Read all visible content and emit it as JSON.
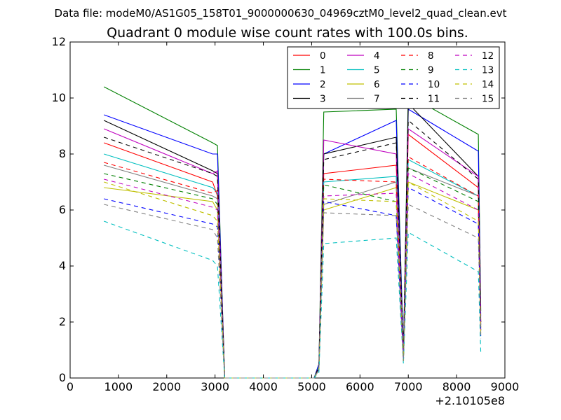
{
  "suptitle": "Data file: modeM0/AS1G05_158T01_9000000630_04969cztM0_level2_quad_clean.evt",
  "chart_data": {
    "type": "line",
    "title": "Quadrant 0 module wise count rates with 100.0s bins.",
    "xlabel": "",
    "ylabel": "",
    "x_offset_label": "+2.10105e8",
    "xlim": [
      0,
      9000
    ],
    "ylim": [
      0,
      12
    ],
    "xticks": [
      0,
      1000,
      2000,
      3000,
      4000,
      5000,
      6000,
      7000,
      8000,
      9000
    ],
    "yticks": [
      0,
      2,
      4,
      6,
      8,
      10,
      12
    ],
    "grid": false,
    "legend": {
      "placement": "top-right",
      "columns": 4
    },
    "x": [
      700,
      2950,
      3050,
      3200,
      5050,
      5150,
      5250,
      6750,
      6900,
      7000,
      8450,
      8500
    ],
    "series": [
      {
        "name": "0",
        "color": "#ff0000",
        "dash": "solid",
        "values": [
          8.4,
          7.0,
          6.5,
          0.0,
          0.0,
          0.4,
          7.3,
          7.6,
          0.9,
          8.7,
          6.8,
          2.0
        ]
      },
      {
        "name": "1",
        "color": "#008000",
        "dash": "solid",
        "values": [
          10.4,
          8.4,
          8.3,
          0.0,
          0.0,
          0.5,
          9.5,
          9.6,
          1.0,
          10.1,
          8.7,
          2.4
        ]
      },
      {
        "name": "2",
        "color": "#0000ff",
        "dash": "solid",
        "values": [
          9.4,
          8.0,
          8.0,
          0.0,
          0.0,
          0.5,
          8.0,
          9.2,
          0.9,
          9.6,
          8.1,
          2.2
        ]
      },
      {
        "name": "3",
        "color": "#000000",
        "dash": "solid",
        "values": [
          9.2,
          7.4,
          7.3,
          0.0,
          0.0,
          0.4,
          8.0,
          8.6,
          0.7,
          9.8,
          7.2,
          1.9
        ]
      },
      {
        "name": "4",
        "color": "#bf00bf",
        "dash": "solid",
        "values": [
          8.9,
          7.3,
          7.4,
          0.0,
          0.0,
          0.4,
          8.5,
          8.0,
          0.8,
          8.9,
          7.2,
          2.0
        ]
      },
      {
        "name": "5",
        "color": "#00bfbf",
        "dash": "solid",
        "values": [
          8.0,
          6.8,
          6.6,
          0.0,
          0.0,
          0.4,
          7.0,
          7.2,
          0.8,
          7.8,
          6.5,
          1.7
        ]
      },
      {
        "name": "6",
        "color": "#bfbf00",
        "dash": "solid",
        "values": [
          6.8,
          6.3,
          6.0,
          0.0,
          0.0,
          0.3,
          6.0,
          6.8,
          0.6,
          7.0,
          6.0,
          1.6
        ]
      },
      {
        "name": "7",
        "color": "#808080",
        "dash": "solid",
        "values": [
          7.6,
          6.5,
          6.4,
          0.0,
          0.0,
          0.3,
          6.2,
          7.0,
          0.6,
          7.5,
          6.5,
          1.8
        ]
      },
      {
        "name": "8",
        "color": "#ff0000",
        "dash": "dashed",
        "values": [
          7.7,
          6.6,
          6.7,
          0.0,
          0.0,
          0.4,
          7.1,
          7.0,
          0.7,
          7.9,
          6.5,
          1.8
        ]
      },
      {
        "name": "9",
        "color": "#008000",
        "dash": "dashed",
        "values": [
          7.3,
          6.4,
          6.2,
          0.0,
          0.0,
          0.3,
          6.9,
          6.3,
          0.6,
          7.5,
          6.3,
          1.7
        ]
      },
      {
        "name": "10",
        "color": "#0000ff",
        "dash": "dashed",
        "values": [
          6.4,
          5.5,
          5.4,
          0.0,
          0.0,
          0.3,
          6.3,
          5.8,
          0.6,
          6.8,
          5.5,
          1.5
        ]
      },
      {
        "name": "11",
        "color": "#000000",
        "dash": "dashed",
        "values": [
          8.6,
          7.3,
          7.2,
          0.0,
          0.0,
          0.4,
          7.8,
          8.4,
          0.8,
          9.2,
          7.1,
          2.0
        ]
      },
      {
        "name": "12",
        "color": "#bf00bf",
        "dash": "dashed",
        "values": [
          7.1,
          6.1,
          6.0,
          0.0,
          0.0,
          0.3,
          6.5,
          6.6,
          0.7,
          7.3,
          6.0,
          1.7
        ]
      },
      {
        "name": "13",
        "color": "#00bfbf",
        "dash": "dashed",
        "values": [
          5.6,
          4.2,
          4.0,
          0.0,
          0.0,
          0.2,
          4.8,
          5.0,
          0.5,
          5.2,
          3.8,
          0.9
        ]
      },
      {
        "name": "14",
        "color": "#bfbf00",
        "dash": "dashed",
        "values": [
          7.0,
          5.8,
          5.6,
          0.0,
          0.0,
          0.3,
          6.4,
          6.3,
          0.6,
          7.0,
          5.6,
          1.5
        ]
      },
      {
        "name": "15",
        "color": "#808080",
        "dash": "dashed",
        "values": [
          6.2,
          5.3,
          5.0,
          0.0,
          0.0,
          0.3,
          5.9,
          5.8,
          0.6,
          6.2,
          5.0,
          1.4
        ]
      }
    ]
  }
}
